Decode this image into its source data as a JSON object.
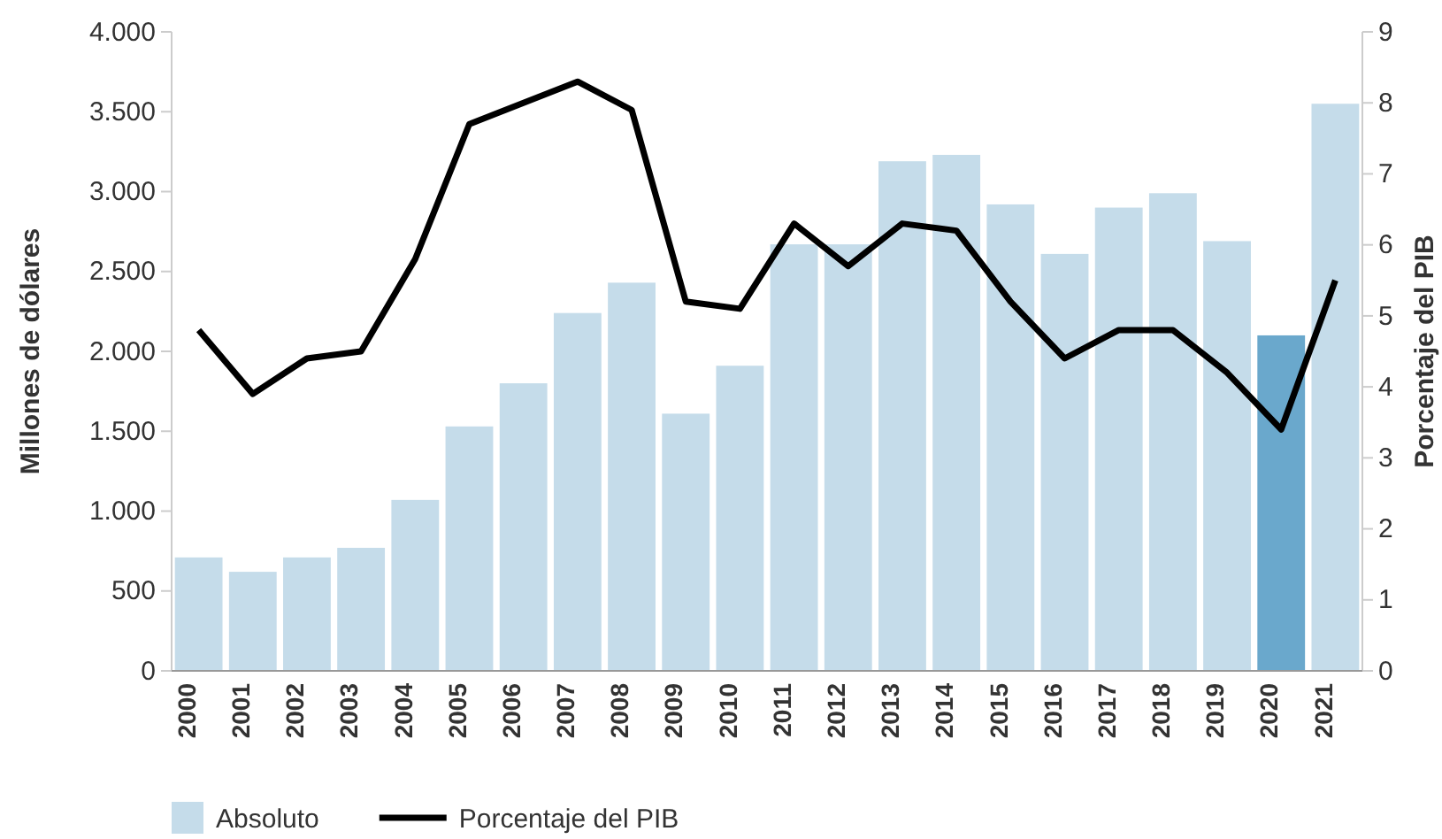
{
  "chart_data": {
    "type": "bar",
    "categories": [
      "2000",
      "2001",
      "2002",
      "2003",
      "2004",
      "2005",
      "2006",
      "2007",
      "2008",
      "2009",
      "2010",
      "2011",
      "2012",
      "2013",
      "2014",
      "2015",
      "2016",
      "2017",
      "2018",
      "2019",
      "2020",
      "2021"
    ],
    "ylabel": "Millones de dólares",
    "y2label": "Porcentaje del PIB",
    "ylim": [
      0,
      4000
    ],
    "yticks": [
      0,
      {
        "value": 500,
        "label": "500"
      },
      {
        "value": 1000,
        "label": "1.000"
      },
      {
        "value": 1500,
        "label": "1.500"
      },
      {
        "value": 2000,
        "label": "2.000"
      },
      {
        "value": 2500,
        "label": "2.500"
      },
      {
        "value": 3000,
        "label": "3.000"
      },
      {
        "value": 3500,
        "label": "3.500"
      },
      {
        "value": 4000,
        "label": "4.000"
      }
    ],
    "y2lim": [
      0,
      9
    ],
    "y2ticks": [
      0,
      1,
      2,
      3,
      4,
      5,
      6,
      7,
      8,
      9
    ],
    "series": [
      {
        "name": "Absoluto",
        "color": "#c5dcea",
        "colors": [
          "#c5dcea",
          "#c5dcea",
          "#c5dcea",
          "#c5dcea",
          "#c5dcea",
          "#c5dcea",
          "#c5dcea",
          "#c5dcea",
          "#c5dcea",
          "#c5dcea",
          "#c5dcea",
          "#c5dcea",
          "#c5dcea",
          "#c5dcea",
          "#c5dcea",
          "#c5dcea",
          "#c5dcea",
          "#c5dcea",
          "#c5dcea",
          "#c5dcea",
          "#6aa8cc",
          "#c5dcea"
        ],
        "values": [
          710,
          620,
          710,
          770,
          1070,
          1530,
          1800,
          2240,
          2430,
          1610,
          1910,
          2670,
          2670,
          3190,
          3230,
          2920,
          2610,
          2900,
          2990,
          2690,
          2100,
          3550
        ]
      },
      {
        "name": "Porcentaje del PIB",
        "type": "line",
        "axis": "y2",
        "color": "#000000",
        "values": [
          4.8,
          3.9,
          4.4,
          4.5,
          5.8,
          7.7,
          8.0,
          8.3,
          7.9,
          5.2,
          5.1,
          6.3,
          5.7,
          6.3,
          6.2,
          5.2,
          4.4,
          4.8,
          4.8,
          4.2,
          3.4,
          5.5
        ]
      }
    ],
    "grid": false,
    "legend": "bottom left",
    "line_style": "solid",
    "marker": "none"
  }
}
